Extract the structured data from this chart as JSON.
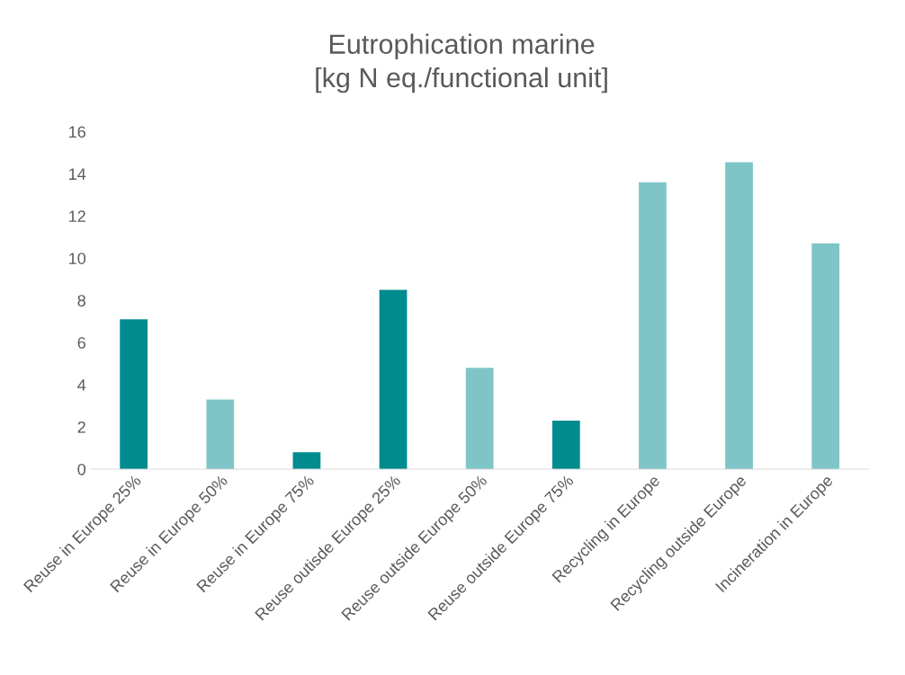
{
  "chart_data": {
    "type": "bar",
    "title": "Eutrophication marine\n[kg N eq./functional unit]",
    "categories": [
      "Reuse in Europe 25%",
      "Reuse in Europe 50%",
      "Reuse in Europe 75%",
      "Reuse outisde Europe 25%",
      "Reuse outside Europe 50%",
      "Reuse outside Europe 75%",
      "Recycling in Europe",
      "Recycling outside Europe",
      "Incineration in Europe"
    ],
    "values": [
      7.1,
      3.3,
      0.8,
      8.5,
      4.8,
      2.3,
      13.6,
      14.55,
      10.7
    ],
    "colors": [
      "#008b8f",
      "#7fc5c7",
      "#008b8f",
      "#008b8f",
      "#7fc5c7",
      "#008b8f",
      "#7fc5c7",
      "#7fc5c7",
      "#7fc5c7"
    ],
    "ylim": [
      0,
      16
    ],
    "yticks": [
      0,
      2,
      4,
      6,
      8,
      10,
      12,
      14,
      16
    ],
    "grid": false,
    "legend": false
  }
}
